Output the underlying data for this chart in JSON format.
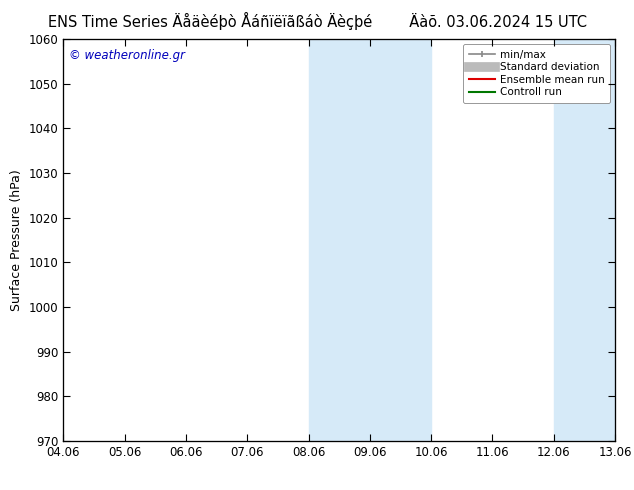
{
  "title": "ENS Time Series Äåäèéþò Åáñïëïãßáò Äèçþé",
  "date_str": "Äàõ. 03.06.2024 15 UTC",
  "ylabel": "Surface Pressure (hPa)",
  "ylim": [
    970,
    1060
  ],
  "yticks": [
    970,
    980,
    990,
    1000,
    1010,
    1020,
    1030,
    1040,
    1050,
    1060
  ],
  "xtick_labels": [
    "04.06",
    "05.06",
    "06.06",
    "07.06",
    "08.06",
    "09.06",
    "10.06",
    "11.06",
    "12.06",
    "13.06"
  ],
  "watermark": "© weatheronline.gr",
  "shaded_bands": [
    {
      "xmin": 4.0,
      "xmax": 6.0
    },
    {
      "xmin": 8.0,
      "xmax": 9.0
    }
  ],
  "shade_color": "#d6eaf8",
  "legend_items": [
    {
      "label": "min/max",
      "color": "#888888",
      "lw": 1.2,
      "style": "line_with_caps"
    },
    {
      "label": "Standard deviation",
      "color": "#bbbbbb",
      "lw": 7,
      "style": "line"
    },
    {
      "label": "Ensemble mean run",
      "color": "#dd0000",
      "lw": 1.5,
      "style": "line"
    },
    {
      "label": "Controll run",
      "color": "#007700",
      "lw": 1.5,
      "style": "line"
    }
  ],
  "background_color": "#ffffff",
  "plot_bg_color": "#ffffff",
  "title_fontsize": 10.5,
  "watermark_color": "#0000bb",
  "watermark_fontsize": 8.5
}
